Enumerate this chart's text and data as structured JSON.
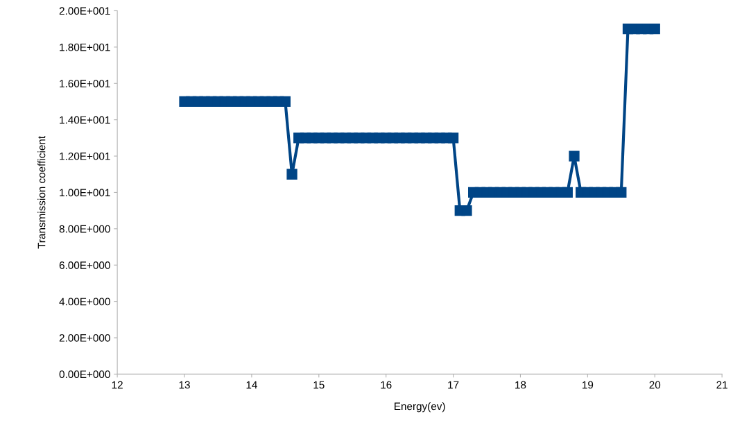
{
  "chart_data": {
    "type": "line",
    "xlabel": "Energy(ev)",
    "ylabel": "Transmission coefficient",
    "x": [
      13.0,
      13.1,
      13.2,
      13.3,
      13.4,
      13.5,
      13.6,
      13.7,
      13.8,
      13.9,
      14.0,
      14.1,
      14.2,
      14.3,
      14.4,
      14.5,
      14.6,
      14.7,
      14.8,
      14.9,
      15.0,
      15.1,
      15.2,
      15.3,
      15.4,
      15.5,
      15.6,
      15.7,
      15.8,
      15.9,
      16.0,
      16.1,
      16.2,
      16.3,
      16.4,
      16.5,
      16.6,
      16.7,
      16.8,
      16.9,
      17.0,
      17.1,
      17.2,
      17.3,
      17.4,
      17.5,
      17.6,
      17.7,
      17.8,
      17.9,
      18.0,
      18.1,
      18.2,
      18.3,
      18.4,
      18.5,
      18.6,
      18.7,
      18.8,
      18.9,
      19.0,
      19.1,
      19.2,
      19.3,
      19.4,
      19.5,
      19.6,
      19.7,
      19.8,
      19.9,
      20.0
    ],
    "series": [
      {
        "color": "#004586",
        "values": [
          15,
          15,
          15,
          15,
          15,
          15,
          15,
          15,
          15,
          15,
          15,
          15,
          15,
          15,
          15,
          15,
          11,
          13,
          13,
          13,
          13,
          13,
          13,
          13,
          13,
          13,
          13,
          13,
          13,
          13,
          13,
          13,
          13,
          13,
          13,
          13,
          13,
          13,
          13,
          13,
          13,
          9,
          9,
          10,
          10,
          10,
          10,
          10,
          10,
          10,
          10,
          10,
          10,
          10,
          10,
          10,
          10,
          10,
          12,
          10,
          10,
          10,
          10,
          10,
          10,
          10,
          19,
          19,
          19,
          19,
          19
        ]
      }
    ],
    "marker": "square",
    "line_style": "solid",
    "xlim": [
      12,
      21
    ],
    "xticks": [
      12,
      13,
      14,
      15,
      16,
      17,
      18,
      19,
      20,
      21
    ],
    "ylim": [
      0,
      20
    ],
    "yticks": [
      {
        "value": 0,
        "label": "0.00E+000"
      },
      {
        "value": 2,
        "label": "2.00E+000"
      },
      {
        "value": 4,
        "label": "4.00E+000"
      },
      {
        "value": 6,
        "label": "6.00E+000"
      },
      {
        "value": 8,
        "label": "8.00E+000"
      },
      {
        "value": 10,
        "label": "1.00E+001"
      },
      {
        "value": 12,
        "label": "1.20E+001"
      },
      {
        "value": 14,
        "label": "1.40E+001"
      },
      {
        "value": 16,
        "label": "1.60E+001"
      },
      {
        "value": 18,
        "label": "1.80E+001"
      },
      {
        "value": 20,
        "label": "2.00E+001"
      }
    ]
  }
}
